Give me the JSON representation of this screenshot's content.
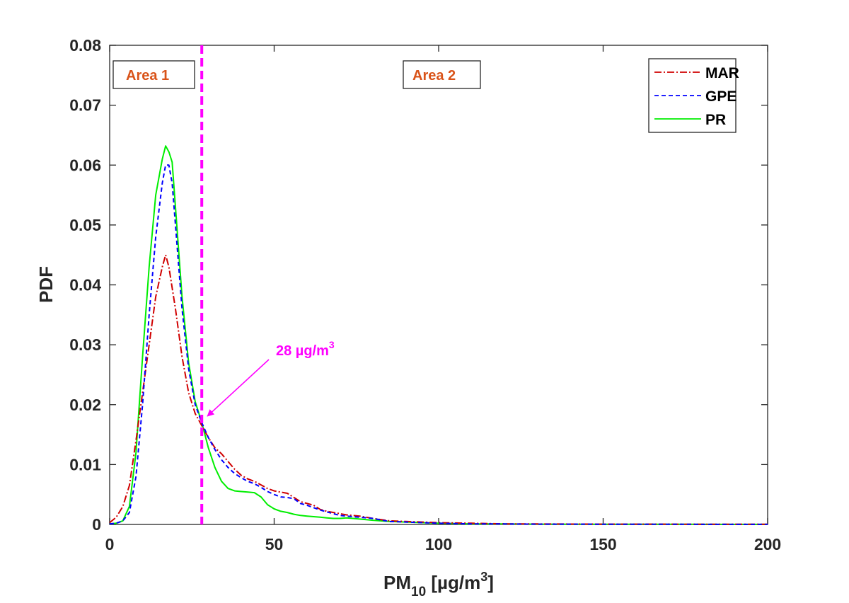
{
  "chart_data": {
    "type": "line",
    "xlabel": {
      "base": "PM",
      "sub": "10",
      "unit_prefix": " [µg/m",
      "sup": "3",
      "unit_suffix": "]"
    },
    "ylabel": "PDF",
    "xlim": [
      0,
      200
    ],
    "ylim": [
      0,
      0.08
    ],
    "xticks": [
      0,
      50,
      100,
      150,
      200
    ],
    "xtick_labels": [
      "0",
      "50",
      "100",
      "150",
      "200"
    ],
    "yticks": [
      0,
      0.01,
      0.02,
      0.03,
      0.04,
      0.05,
      0.06,
      0.07,
      0.08
    ],
    "ytick_labels": [
      "0",
      "0.01",
      "0.02",
      "0.03",
      "0.04",
      "0.05",
      "0.06",
      "0.07",
      "0.08"
    ],
    "grid": false,
    "legend_position": "top-right",
    "series": [
      {
        "name": "MAR",
        "color": "#D00000",
        "dash": "10,3,2,3",
        "x": [
          0,
          2,
          4,
          6,
          8,
          10,
          12,
          14,
          16,
          17,
          18,
          20,
          22,
          24,
          26,
          28,
          30,
          32,
          34,
          36,
          38,
          40,
          42,
          44,
          46,
          48,
          50,
          52,
          54,
          56,
          58,
          60,
          62,
          64,
          66,
          68,
          70,
          72,
          74,
          76,
          78,
          80,
          85,
          90,
          95,
          100,
          110,
          120,
          130,
          150,
          175,
          200
        ],
        "y": [
          0.0003,
          0.0012,
          0.003,
          0.0065,
          0.014,
          0.022,
          0.03,
          0.038,
          0.043,
          0.045,
          0.043,
          0.036,
          0.028,
          0.022,
          0.0185,
          0.0165,
          0.0145,
          0.0128,
          0.0118,
          0.0105,
          0.0092,
          0.0082,
          0.0076,
          0.0072,
          0.0066,
          0.006,
          0.0056,
          0.0054,
          0.0052,
          0.0045,
          0.0038,
          0.0035,
          0.0032,
          0.0025,
          0.0022,
          0.002,
          0.0018,
          0.0016,
          0.0015,
          0.0014,
          0.0012,
          0.001,
          0.0006,
          0.0005,
          0.0004,
          0.0003,
          0.0002,
          0.0001,
          8e-05,
          5e-05,
          3e-05,
          2e-05
        ]
      },
      {
        "name": "GPE",
        "color": "#0000FF",
        "dash": "6,4",
        "x": [
          0,
          2,
          4,
          6,
          8,
          10,
          12,
          14,
          16,
          17,
          18,
          19,
          20,
          22,
          24,
          26,
          28,
          30,
          32,
          34,
          36,
          38,
          40,
          42,
          44,
          46,
          48,
          50,
          52,
          54,
          56,
          58,
          60,
          62,
          64,
          66,
          68,
          70,
          72,
          74,
          76,
          78,
          80,
          85,
          90,
          95,
          100,
          110,
          120,
          130,
          150,
          175,
          200
        ],
        "y": [
          0.0001,
          0.0002,
          0.0006,
          0.002,
          0.008,
          0.02,
          0.035,
          0.048,
          0.057,
          0.06,
          0.06,
          0.057,
          0.05,
          0.036,
          0.026,
          0.02,
          0.017,
          0.0145,
          0.0125,
          0.0108,
          0.0095,
          0.0085,
          0.0078,
          0.0072,
          0.0068,
          0.0062,
          0.0055,
          0.005,
          0.0046,
          0.0045,
          0.0043,
          0.0035,
          0.0032,
          0.0028,
          0.0024,
          0.0021,
          0.0018,
          0.0015,
          0.0014,
          0.0013,
          0.0012,
          0.0011,
          0.001,
          0.0005,
          0.0004,
          0.0003,
          0.0002,
          0.0001,
          8e-05,
          5e-05,
          3e-05,
          2e-05,
          1e-05
        ]
      },
      {
        "name": "PR",
        "color": "#00EE00",
        "dash": "",
        "x": [
          0,
          2,
          4,
          6,
          8,
          10,
          12,
          14,
          16,
          17,
          18,
          19,
          20,
          22,
          24,
          26,
          28,
          30,
          32,
          34,
          36,
          38,
          40,
          42,
          44,
          46,
          48,
          50,
          52,
          54,
          56,
          58,
          60,
          62,
          64,
          66,
          68,
          70,
          72,
          74,
          76,
          78,
          80,
          85,
          90,
          95,
          100,
          110,
          120,
          130,
          150,
          175,
          200
        ],
        "y": [
          0.0001,
          0.0002,
          0.0006,
          0.003,
          0.012,
          0.028,
          0.043,
          0.055,
          0.061,
          0.0632,
          0.0622,
          0.0605,
          0.053,
          0.038,
          0.027,
          0.0205,
          0.017,
          0.0128,
          0.0095,
          0.0072,
          0.006,
          0.0056,
          0.0055,
          0.0054,
          0.0053,
          0.0046,
          0.0033,
          0.0026,
          0.0022,
          0.002,
          0.0017,
          0.0015,
          0.0014,
          0.0013,
          0.0012,
          0.0011,
          0.001,
          0.001,
          0.0011,
          0.001,
          0.0009,
          0.0008,
          0.0007,
          0.0005,
          0.0004,
          0.0003,
          0.0002,
          0.0001,
          8e-05,
          5e-05,
          3e-05,
          2e-05,
          1e-05
        ]
      }
    ],
    "threshold": {
      "x": 28,
      "color": "#FF00FF"
    },
    "annotations": [
      {
        "text": "Area 1"
      },
      {
        "text": "Area 2"
      }
    ],
    "arrow_label": {
      "text_main": "28 µg/m",
      "sup": "3",
      "target_x": 28,
      "target_y": 0.0175
    }
  }
}
